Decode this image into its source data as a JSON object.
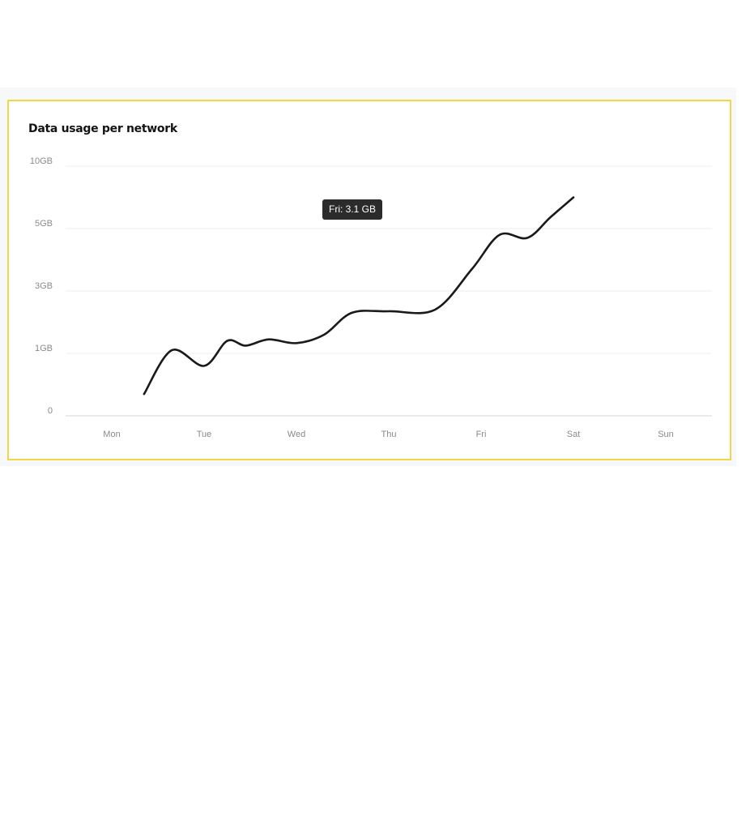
{
  "chart_data": {
    "type": "line",
    "title": "Data usage per network",
    "categories": [
      "Mon",
      "Tue",
      "Wed",
      "Thu",
      "Fri",
      "Sat",
      "Sun"
    ],
    "y_ticks": [
      {
        "label": "0",
        "value": 0
      },
      {
        "label": "1GB",
        "value": 1
      },
      {
        "label": "3GB",
        "value": 3
      },
      {
        "label": "5GB",
        "value": 5
      },
      {
        "label": "10GB",
        "value": 10
      }
    ],
    "y_scale": "non-linear (tick labels evenly spaced)",
    "series": [
      {
        "points": [
          {
            "x": 0.35,
            "y": 0.35
          },
          {
            "x": 0.65,
            "y": 1.1
          },
          {
            "x": 1.0,
            "y": 0.8
          },
          {
            "x": 1.25,
            "y": 1.4
          },
          {
            "x": 1.45,
            "y": 1.25
          },
          {
            "x": 1.7,
            "y": 1.45
          },
          {
            "x": 2.0,
            "y": 1.33
          },
          {
            "x": 2.3,
            "y": 1.6
          },
          {
            "x": 2.6,
            "y": 2.3
          },
          {
            "x": 3.0,
            "y": 2.35
          },
          {
            "x": 3.5,
            "y": 2.4
          },
          {
            "x": 3.9,
            "y": 3.7
          },
          {
            "x": 4.2,
            "y": 4.8
          },
          {
            "x": 4.5,
            "y": 4.7
          },
          {
            "x": 4.75,
            "y": 5.9
          },
          {
            "x": 5.0,
            "y": 7.5
          }
        ],
        "color": "#1a1a1a"
      }
    ],
    "tooltip": "Fri: 3.1 GB",
    "grid": true,
    "legend": "none"
  },
  "colors": {
    "card_border": "#f3d547",
    "line": "#1a1a1a",
    "grid": "#ededed",
    "axis": "#d4d4d4",
    "tick_text": "#8a8a8a",
    "tooltip_bg": "#2b2b2b",
    "background_band": "#f7f8fa"
  }
}
